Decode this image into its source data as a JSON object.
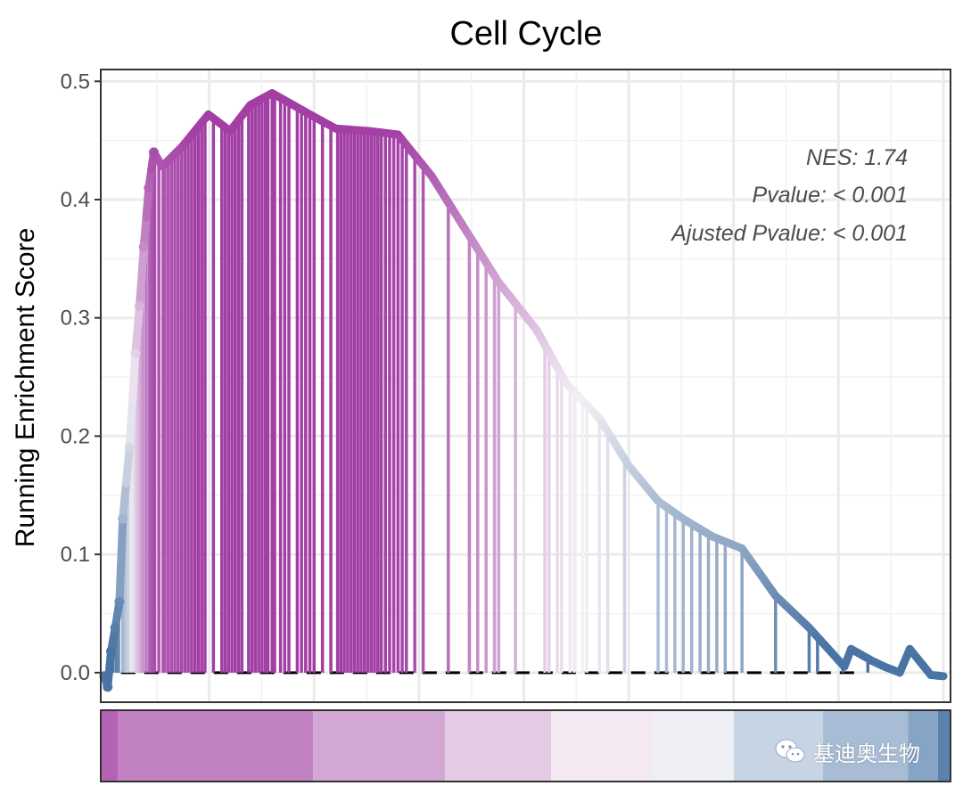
{
  "chart_data": {
    "type": "line",
    "title": "Cell Cycle",
    "ylabel": "Running Enrichment Score",
    "xlabel": "",
    "xlim": [
      0,
      10000
    ],
    "ylim": [
      -0.025,
      0.51
    ],
    "y_ticks": [
      {
        "value": 0.0,
        "label": "0.0"
      },
      {
        "value": 0.1,
        "label": "0.1"
      },
      {
        "value": 0.2,
        "label": "0.2"
      },
      {
        "value": 0.3,
        "label": "0.3"
      },
      {
        "value": 0.4,
        "label": "0.4"
      },
      {
        "value": 0.5,
        "label": "0.5"
      }
    ],
    "x_gridlines": [
      1250,
      2500,
      3750,
      5000,
      6250,
      7500,
      8750,
      10000
    ],
    "grid": true,
    "baseline": 0.0,
    "running_score_points": [
      [
        0,
        -0.003
      ],
      [
        40,
        -0.012
      ],
      [
        80,
        0.018
      ],
      [
        130,
        0.038
      ],
      [
        180,
        0.06
      ],
      [
        220,
        0.13
      ],
      [
        300,
        0.19
      ],
      [
        370,
        0.27
      ],
      [
        420,
        0.31
      ],
      [
        470,
        0.36
      ],
      [
        530,
        0.41
      ],
      [
        590,
        0.44
      ],
      [
        690,
        0.428
      ],
      [
        930,
        0.445
      ],
      [
        1240,
        0.472
      ],
      [
        1500,
        0.458
      ],
      [
        1740,
        0.48
      ],
      [
        2000,
        0.49
      ],
      [
        2500,
        0.47
      ],
      [
        2760,
        0.46
      ],
      [
        3150,
        0.458
      ],
      [
        3500,
        0.455
      ],
      [
        3900,
        0.42
      ],
      [
        4300,
        0.375
      ],
      [
        4700,
        0.33
      ],
      [
        5150,
        0.29
      ],
      [
        5500,
        0.245
      ],
      [
        5900,
        0.215
      ],
      [
        6250,
        0.175
      ],
      [
        6600,
        0.145
      ],
      [
        6900,
        0.13
      ],
      [
        7250,
        0.115
      ],
      [
        7600,
        0.105
      ],
      [
        8000,
        0.065
      ],
      [
        8400,
        0.038
      ],
      [
        8820,
        0.005
      ],
      [
        8900,
        0.02
      ],
      [
        9150,
        0.01
      ],
      [
        9300,
        0.005
      ],
      [
        9480,
        0.0
      ],
      [
        9600,
        0.02
      ],
      [
        9850,
        -0.002
      ],
      [
        10000,
        -0.003
      ]
    ],
    "hit_positions": [
      20,
      50,
      100,
      140,
      170,
      220,
      250,
      280,
      320,
      360,
      380,
      400,
      430,
      460,
      500,
      540,
      570,
      600,
      650,
      700,
      720,
      760,
      800,
      840,
      880,
      920,
      960,
      1000,
      1040,
      1080,
      1120,
      1160,
      1200,
      1300,
      1400,
      1440,
      1480,
      1520,
      1560,
      1600,
      1640,
      1720,
      1760,
      1800,
      1840,
      1880,
      1920,
      1950,
      2000,
      2030,
      2100,
      2150,
      2200,
      2300,
      2350,
      2400,
      2450,
      2500,
      2600,
      2700,
      2780,
      2820,
      2860,
      2900,
      2940,
      2980,
      3020,
      3060,
      3100,
      3140,
      3180,
      3220,
      3260,
      3300,
      3350,
      3400,
      3450,
      3500,
      3550,
      3600,
      3700,
      3800,
      4100,
      4350,
      4450,
      4550,
      4650,
      4700,
      4900,
      5250,
      5300,
      5400,
      5450,
      5550,
      5600,
      5700,
      5750,
      5900,
      6000,
      6200,
      6600,
      6700,
      6800,
      6900,
      7000,
      7100,
      7200,
      7300,
      7400,
      7600,
      8000,
      8400,
      8500,
      8800,
      9100
    ],
    "color_bands": [
      {
        "from": 0,
        "to": 200,
        "color": "#b462b4"
      },
      {
        "from": 200,
        "to": 2500,
        "color": "#c182c1"
      },
      {
        "from": 2500,
        "to": 4050,
        "color": "#d3a7d3"
      },
      {
        "from": 4050,
        "to": 5300,
        "color": "#e4cbe4"
      },
      {
        "from": 5300,
        "to": 6500,
        "color": "#f5eaf3"
      },
      {
        "from": 6500,
        "to": 7450,
        "color": "#eef0f5"
      },
      {
        "from": 7450,
        "to": 8500,
        "color": "#c7d4e4"
      },
      {
        "from": 8500,
        "to": 9500,
        "color": "#a8bdd5"
      },
      {
        "from": 9500,
        "to": 9850,
        "color": "#86a4c4"
      },
      {
        "from": 9850,
        "to": 10000,
        "color": "#5a82ad"
      }
    ],
    "annotations": {
      "nes": "NES: 1.74",
      "pvalue": "Pvalue: < 0.001",
      "adj_pvalue": "Ajusted Pvalue: < 0.001"
    },
    "color_scale": {
      "positive": "#a23ea4",
      "neutral": "#f3f0f6",
      "negative": "#4a74a3",
      "baseline_line": "#000000",
      "grid": "#ebebeb",
      "panel_border": "#333333"
    }
  },
  "watermark": {
    "icon": "wechat-icon",
    "text": "基迪奥生物"
  }
}
